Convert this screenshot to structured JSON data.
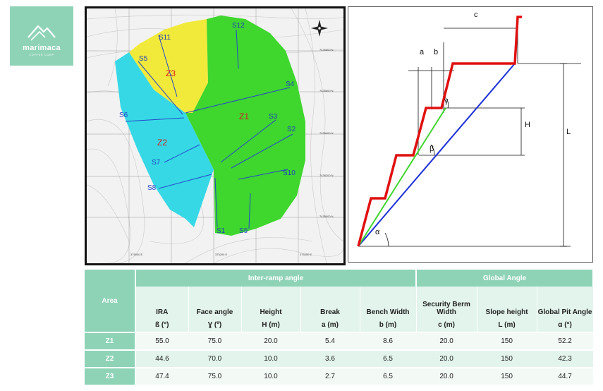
{
  "logo": {
    "brand": "marimaca",
    "tagline": "COPPER CORP"
  },
  "map": {
    "zones": [
      {
        "name": "Z1",
        "color": "#3fd62e"
      },
      {
        "name": "Z2",
        "color": "#36d8e6"
      },
      {
        "name": "Z3",
        "color": "#f2ea3a"
      }
    ],
    "sections": [
      "S1",
      "S2",
      "S3",
      "S4",
      "S5",
      "S6",
      "S7",
      "S8",
      "S9",
      "S10",
      "S11",
      "S12"
    ],
    "northing_labels": [
      "7435800 N",
      "7435600 N",
      "7435400 N",
      "7435200 N",
      "7435000 N"
    ],
    "easting_labels": [
      "375000 E",
      "375200 E",
      "375400 E"
    ]
  },
  "diagram": {
    "labels": {
      "a": "a",
      "b": "b",
      "c": "c",
      "H": "H",
      "L": "L",
      "alpha": "α",
      "beta": "β",
      "gamma": "γ"
    },
    "colors": {
      "bench_profile": "#e01010",
      "inter_ramp": "#3fd62e",
      "global": "#1c2fd6"
    }
  },
  "table": {
    "area_header": "Area",
    "groups": [
      "Inter-ramp angle",
      "Global Angle"
    ],
    "columns": [
      "IRA",
      "Face angle",
      "Height",
      "Break",
      "Bench Width",
      "Security Berm Width",
      "Slope height",
      "Global Pit Angle"
    ],
    "units": [
      "ß (°)",
      "Ɣ (º)",
      "H (m)",
      "a (m)",
      "b (m)",
      "c (m)",
      "L (m)",
      "α (°)"
    ],
    "rows": [
      {
        "area": "Z1",
        "values": [
          "55.0",
          "75.0",
          "20.0",
          "5.4",
          "8.6",
          "20.0",
          "150",
          "52.2"
        ]
      },
      {
        "area": "Z2",
        "values": [
          "44.6",
          "70.0",
          "10.0",
          "3.6",
          "6.5",
          "20.0",
          "150",
          "42.3"
        ]
      },
      {
        "area": "Z3",
        "values": [
          "47.4",
          "75.0",
          "10.0",
          "2.7",
          "6.5",
          "20.0",
          "150",
          "44.7"
        ]
      }
    ]
  }
}
